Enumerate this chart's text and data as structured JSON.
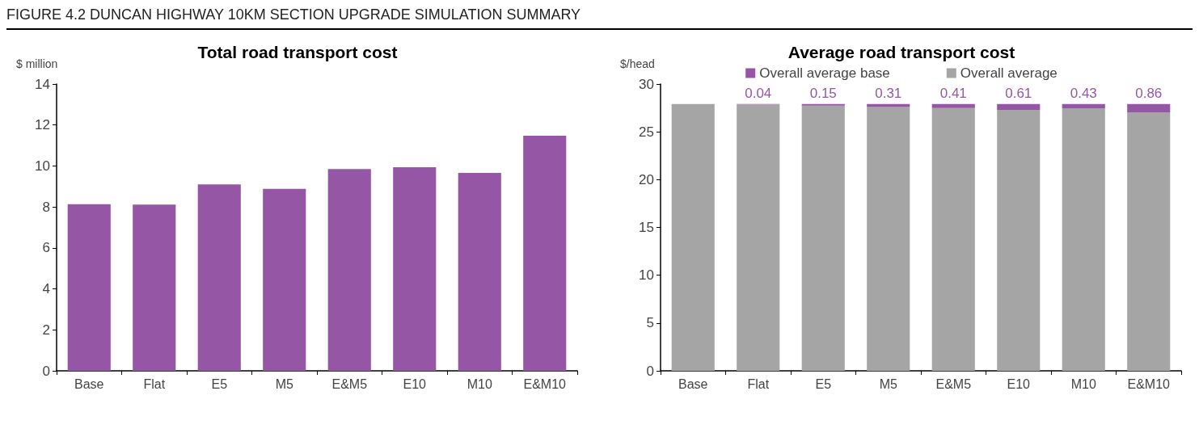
{
  "chart_data": [
    {
      "type": "bar",
      "title": "Total road transport cost",
      "ylabel": "$ million",
      "annotations": [
        "FIGURE 4.2   DUNCAN HIGHWAY 10KM SECTION UPGRADE SIMULATION SUMMARY"
      ],
      "categories": [
        "Base",
        "Flat",
        "E5",
        "M5",
        "E&M5",
        "E10",
        "M10",
        "E&M10"
      ],
      "values": [
        8.13,
        8.11,
        9.1,
        8.88,
        9.85,
        9.94,
        9.66,
        11.48
      ],
      "color": "#9656a6",
      "ylim": [
        0,
        14
      ],
      "yticks": [
        0,
        2,
        4,
        6,
        8,
        10,
        12,
        14
      ],
      "grid": false,
      "legend": false
    },
    {
      "type": "bar",
      "title": "Average road transport cost",
      "ylabel": "$/head",
      "categories": [
        "Base",
        "Flat",
        "E5",
        "M5",
        "E&M5",
        "E10",
        "M10",
        "E&M10"
      ],
      "stacked": true,
      "series": [
        {
          "name": "Overall average",
          "color": "#a5a5a5",
          "values": [
            27.9,
            27.86,
            27.75,
            27.59,
            27.49,
            27.29,
            27.47,
            27.04
          ]
        },
        {
          "name": "Overall average base",
          "color": "#9656a6",
          "values": [
            0,
            0.04,
            0.15,
            0.31,
            0.41,
            0.61,
            0.43,
            0.86
          ],
          "value_labels": [
            null,
            "0.04",
            "0.15",
            "0.31",
            "0.41",
            "0.61",
            "0.43",
            "0.86"
          ]
        }
      ],
      "ylim": [
        0,
        30
      ],
      "yticks": [
        0,
        5,
        10,
        15,
        20,
        25,
        30
      ],
      "grid": false,
      "legend": "top"
    }
  ]
}
